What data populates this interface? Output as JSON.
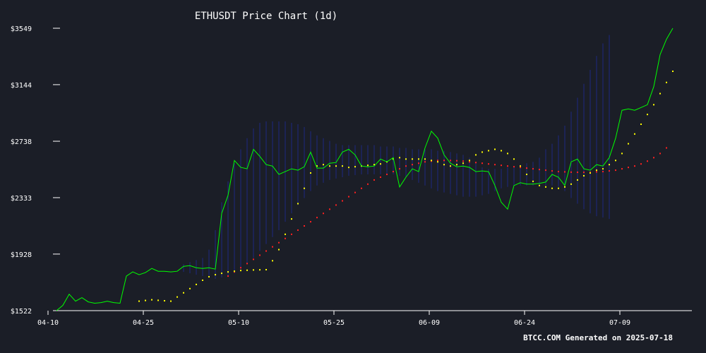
{
  "chart_data": {
    "type": "line",
    "title": "ETHUSDT Price Chart (1d)",
    "footer": "BTCC.COM Generated on 2025-07-18",
    "x_start": "2025-04-10",
    "x_end": "2025-07-18",
    "xticks": [
      "04-10",
      "04-25",
      "05-10",
      "05-25",
      "06-09",
      "06-24",
      "07-09"
    ],
    "yticks": [
      "$1522",
      "$1928",
      "$2333",
      "$2738",
      "$3144",
      "$3549"
    ],
    "ylim": [
      1522,
      3549
    ],
    "colors": {
      "background": "#1b1e27",
      "price": "#00ff00",
      "ma_short": "#ffff00",
      "ma_long": "#ff2020",
      "band": "#1e2a8c",
      "axis": "#ffffff"
    },
    "series": [
      {
        "role": "price",
        "values": [
          1522,
          1560,
          1640,
          1590,
          1615,
          1585,
          1575,
          1580,
          1590,
          1580,
          1575,
          1770,
          1800,
          1780,
          1795,
          1825,
          1805,
          1805,
          1800,
          1805,
          1840,
          1845,
          1830,
          1825,
          1830,
          1820,
          2220,
          2350,
          2600,
          2550,
          2540,
          2680,
          2630,
          2570,
          2560,
          2500,
          2520,
          2540,
          2530,
          2555,
          2660,
          2545,
          2545,
          2580,
          2585,
          2660,
          2680,
          2640,
          2560,
          2555,
          2560,
          2610,
          2590,
          2620,
          2410,
          2480,
          2540,
          2520,
          2690,
          2810,
          2760,
          2640,
          2580,
          2555,
          2560,
          2550,
          2520,
          2525,
          2520,
          2420,
          2300,
          2250,
          2420,
          2440,
          2430,
          2430,
          2435,
          2445,
          2500,
          2480,
          2420,
          2590,
          2610,
          2540,
          2530,
          2570,
          2560,
          2620,
          2760,
          2960,
          2970,
          2960,
          2980,
          3000,
          3130,
          3360,
          3470,
          3549
        ]
      },
      {
        "role": "ma_short",
        "start_index": 13,
        "values": [
          1590,
          1595,
          1600,
          1596,
          1593,
          1590,
          1620,
          1650,
          1680,
          1710,
          1740,
          1765,
          1780,
          1790,
          1800,
          1805,
          1810,
          1812,
          1814,
          1815,
          1816,
          1880,
          1960,
          2070,
          2180,
          2290,
          2400,
          2510,
          2560,
          2570,
          2560,
          2560,
          2560,
          2550,
          2555,
          2560,
          2565,
          2570,
          2575,
          2590,
          2610,
          2620,
          2610,
          2610,
          2610,
          2610,
          2600,
          2590,
          2570,
          2560,
          2570,
          2580,
          2600,
          2640,
          2660,
          2670,
          2680,
          2670,
          2650,
          2610,
          2560,
          2500,
          2450,
          2420,
          2410,
          2400,
          2400,
          2410,
          2430,
          2460,
          2490,
          2510,
          2530,
          2540,
          2570,
          2600,
          2650,
          2720,
          2790,
          2860,
          2930,
          3000,
          3080,
          3160,
          3240
        ]
      },
      {
        "role": "ma_long",
        "start_index": 27,
        "values": [
          1770,
          1800,
          1830,
          1860,
          1890,
          1920,
          1950,
          1980,
          2010,
          2040,
          2070,
          2100,
          2130,
          2160,
          2190,
          2220,
          2250,
          2280,
          2310,
          2340,
          2370,
          2400,
          2430,
          2460,
          2480,
          2500,
          2520,
          2540,
          2560,
          2570,
          2580,
          2590,
          2595,
          2600,
          2600,
          2600,
          2598,
          2595,
          2590,
          2585,
          2580,
          2575,
          2570,
          2565,
          2560,
          2555,
          2550,
          2545,
          2540,
          2535,
          2530,
          2525,
          2520,
          2518,
          2516,
          2515,
          2515,
          2515,
          2518,
          2520,
          2525,
          2530,
          2540,
          2550,
          2560,
          2575,
          2595,
          2620,
          2650,
          2690
        ]
      }
    ],
    "band": {
      "start_index": 20,
      "upper": [
        1855,
        1870,
        1885,
        1900,
        1960,
        2100,
        2300,
        2450,
        2580,
        2680,
        2760,
        2830,
        2870,
        2880,
        2880,
        2880,
        2880,
        2870,
        2860,
        2840,
        2810,
        2780,
        2760,
        2740,
        2720,
        2710,
        2710,
        2710,
        2710,
        2710,
        2710,
        2700,
        2700,
        2700,
        2690,
        2690,
        2680,
        2680,
        2680,
        2680,
        2670,
        2670,
        2660,
        2650,
        2640,
        2620,
        2590,
        2550,
        2540,
        2540,
        2540,
        2550,
        2560,
        2570,
        2580,
        2590,
        2620,
        2680,
        2720,
        2780,
        2850,
        2950,
        3050,
        3150,
        3250,
        3350,
        3440,
        3500
      ],
      "lower": [
        1800,
        1790,
        1780,
        1770,
        1760,
        1750,
        1760,
        1770,
        1790,
        1820,
        1860,
        1900,
        1950,
        2000,
        2050,
        2100,
        2160,
        2220,
        2280,
        2330,
        2380,
        2420,
        2440,
        2460,
        2470,
        2480,
        2490,
        2495,
        2500,
        2500,
        2500,
        2500,
        2500,
        2500,
        2490,
        2480,
        2460,
        2440,
        2420,
        2400,
        2380,
        2370,
        2360,
        2350,
        2340,
        2340,
        2340,
        2350,
        2360,
        2380,
        2400,
        2410,
        2420,
        2420,
        2420,
        2420,
        2420,
        2420,
        2420,
        2410,
        2380,
        2330,
        2290,
        2250,
        2220,
        2200,
        2190,
        2180
      ]
    }
  }
}
